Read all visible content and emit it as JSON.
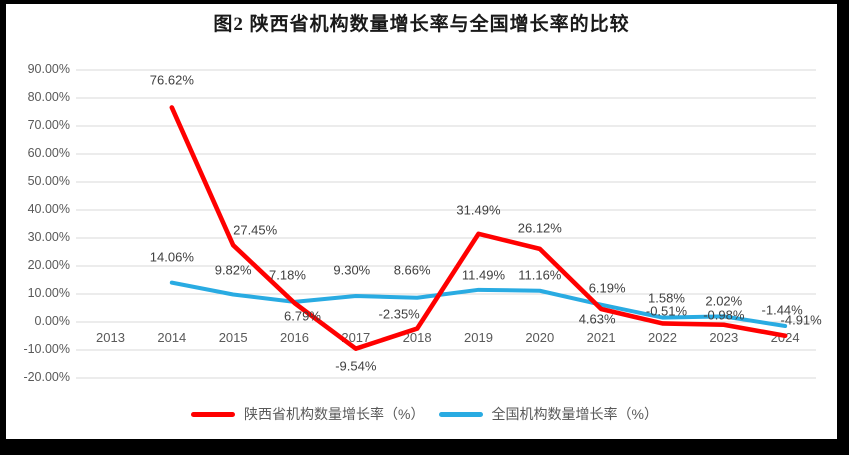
{
  "title": "图2 陕西省机构数量增长率与全国增长率的比较",
  "chart_data": {
    "type": "line",
    "title": "图2 陕西省机构数量增长率与全国增长率的比较",
    "categories": [
      "2013",
      "2014",
      "2015",
      "2016",
      "2017",
      "2018",
      "2019",
      "2020",
      "2021",
      "2022",
      "2023",
      "2024"
    ],
    "series": [
      {
        "name": "陕西省机构数量增长率（%）",
        "color": "#FF0000",
        "values": [
          null,
          76.62,
          27.45,
          6.79,
          -9.54,
          -2.35,
          31.49,
          26.12,
          4.63,
          -0.51,
          -0.98,
          -4.91
        ],
        "labels": [
          null,
          "76.62%",
          "27.45%",
          "6.79%",
          "-9.54%",
          "-2.35%",
          "31.49%",
          "26.12%",
          "4.63%",
          "-0.51%",
          "-0.98%",
          "-4.91%"
        ]
      },
      {
        "name": "全国机构数量增长率（%）",
        "color": "#29ABE2",
        "values": [
          null,
          14.06,
          9.82,
          7.18,
          9.3,
          8.66,
          11.49,
          11.16,
          6.19,
          1.58,
          2.02,
          -1.44
        ],
        "labels": [
          null,
          "14.06%",
          "9.82%",
          "7.18%",
          "9.30%",
          "8.66%",
          "11.49%",
          "11.16%",
          "6.19%",
          "1.58%",
          "2.02%",
          "-1.44%"
        ]
      }
    ],
    "ylim": [
      -20,
      90
    ],
    "ytick_step": 10,
    "ytick_labels": [
      "90.00%",
      "80.00%",
      "70.00%",
      "60.00%",
      "50.00%",
      "40.00%",
      "30.00%",
      "20.00%",
      "10.00%",
      "0.00%",
      "-10.00%",
      "-20.00%"
    ],
    "grid": true,
    "legend_position": "bottom",
    "colors": {
      "grid": "#D9D9D9",
      "axis_text": "#595959",
      "label_text": "#404040",
      "background": "#FFFFFF",
      "frame": "#000000"
    }
  }
}
